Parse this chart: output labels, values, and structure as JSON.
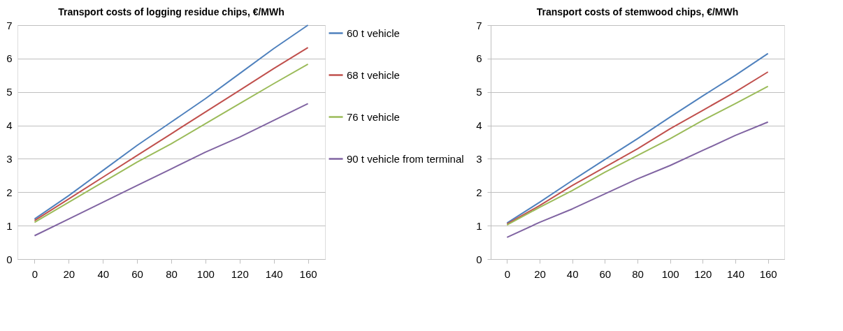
{
  "chart_data": [
    {
      "type": "line",
      "title": "Transport costs of logging residue chips, €/MWh",
      "categories": [
        "0",
        "20",
        "40",
        "60",
        "80",
        "100",
        "120",
        "140",
        "160"
      ],
      "ylim": [
        0,
        7
      ],
      "yticks": [
        0,
        1,
        2,
        3,
        4,
        5,
        6,
        7
      ],
      "grid": "y",
      "legend": "right",
      "marker": "none",
      "series": [
        {
          "name": "60 t vehicle",
          "color": "#4f81bd",
          "values": [
            1.2,
            1.9,
            2.65,
            3.4,
            4.1,
            4.8,
            5.55,
            6.3,
            7.0
          ]
        },
        {
          "name": "68 t vehicle",
          "color": "#c0504d",
          "values": [
            1.15,
            1.8,
            2.45,
            3.1,
            3.75,
            4.4,
            5.05,
            5.7,
            6.33
          ]
        },
        {
          "name": "76 t vehicle",
          "color": "#9bbb59",
          "values": [
            1.1,
            1.7,
            2.3,
            2.9,
            3.45,
            4.05,
            4.65,
            5.25,
            5.83
          ]
        },
        {
          "name": "90 t vehicle from terminal",
          "color": "#8064a2",
          "values": [
            0.7,
            1.2,
            1.7,
            2.2,
            2.7,
            3.2,
            3.65,
            4.15,
            4.65
          ]
        }
      ]
    },
    {
      "type": "line",
      "title": "Transport costs of stemwood chips, €/MWh",
      "categories": [
        "0",
        "20",
        "40",
        "60",
        "80",
        "100",
        "120",
        "140",
        "160"
      ],
      "ylim": [
        0,
        7
      ],
      "yticks": [
        0,
        1,
        2,
        3,
        4,
        5,
        6,
        7
      ],
      "grid": "y",
      "legend": false,
      "marker": "none",
      "series": [
        {
          "color": "#4f81bd",
          "values": [
            1.08,
            1.7,
            2.35,
            2.98,
            3.6,
            4.25,
            4.88,
            5.5,
            6.15
          ]
        },
        {
          "color": "#c0504d",
          "values": [
            1.05,
            1.6,
            2.2,
            2.75,
            3.3,
            3.9,
            4.45,
            5.0,
            5.6
          ]
        },
        {
          "color": "#9bbb59",
          "values": [
            1.02,
            1.55,
            2.05,
            2.6,
            3.1,
            3.6,
            4.15,
            4.65,
            5.17
          ]
        },
        {
          "color": "#8064a2",
          "values": [
            0.65,
            1.1,
            1.5,
            1.95,
            2.4,
            2.8,
            3.25,
            3.7,
            4.1
          ]
        }
      ]
    }
  ]
}
